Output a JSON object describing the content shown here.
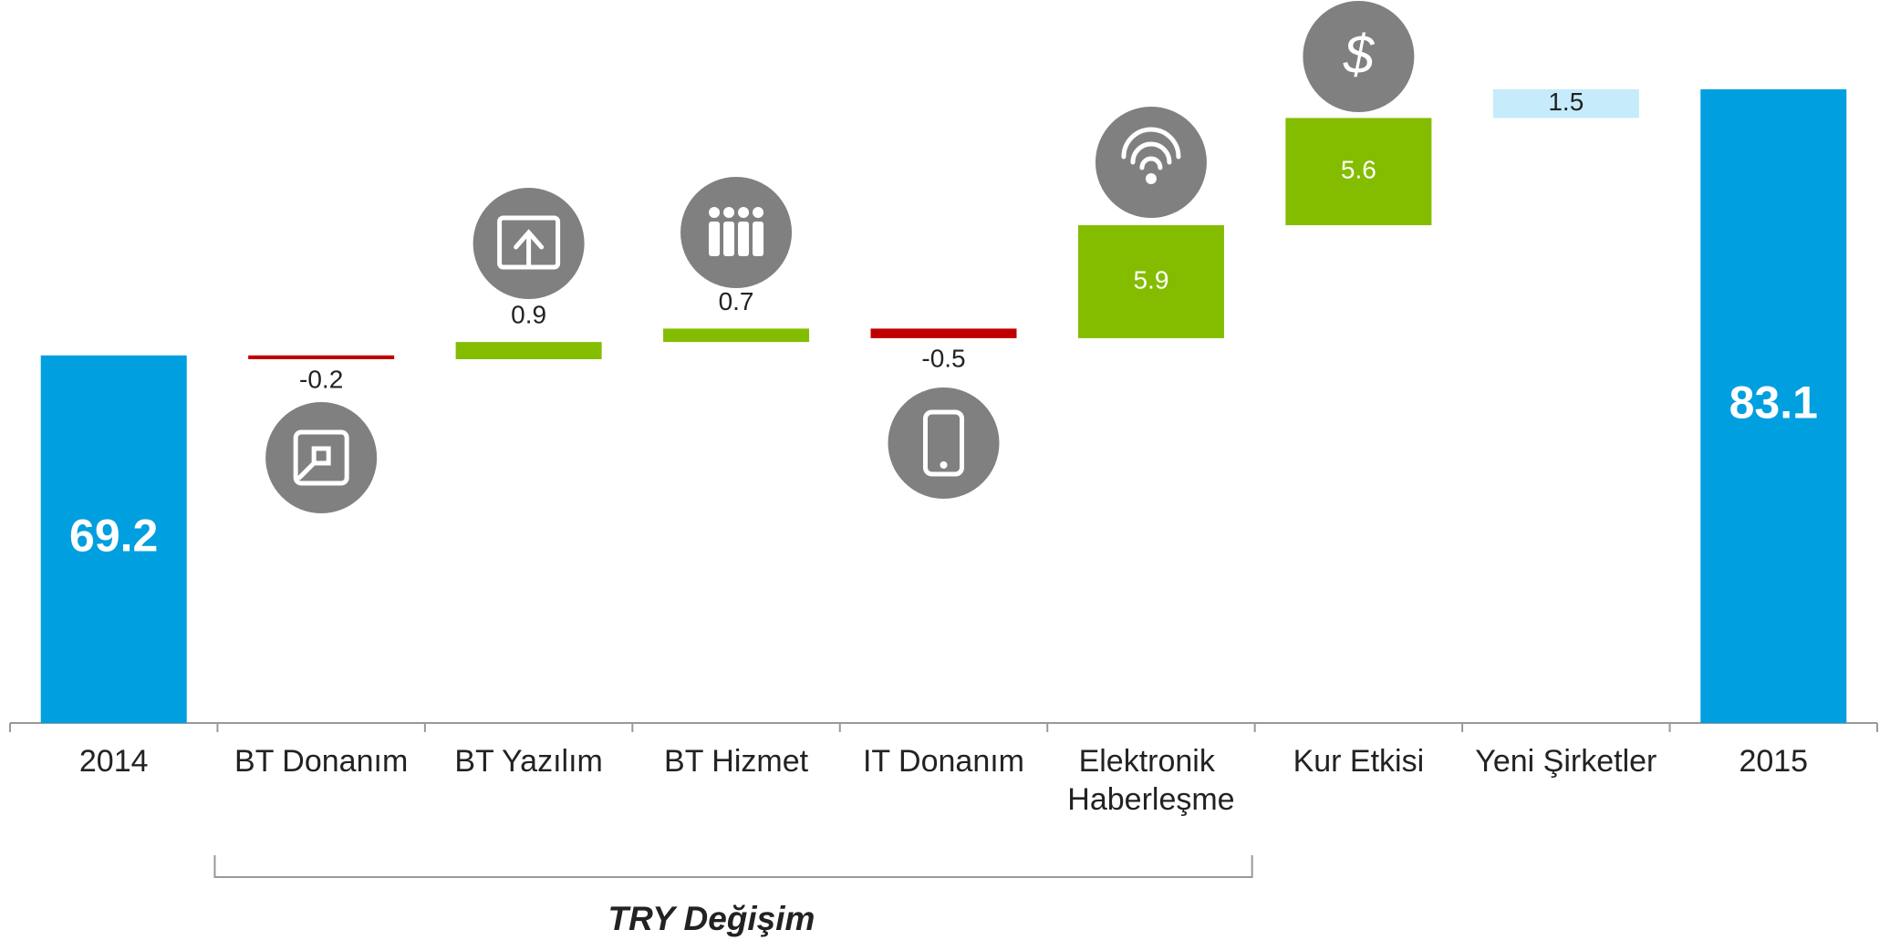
{
  "chart_data": {
    "type": "waterfall",
    "categories": [
      "2014",
      "BT Donanım",
      "BT Yazılım",
      "BT Hizmet",
      "IT Donanım",
      "Elektronik Haberleşme",
      "Kur Etkisi",
      "Yeni Şirketler",
      "2015"
    ],
    "values": [
      69.2,
      -0.2,
      0.9,
      0.7,
      -0.5,
      5.9,
      5.6,
      1.5,
      83.1
    ],
    "totals": [
      true,
      false,
      false,
      false,
      false,
      false,
      false,
      false,
      true
    ],
    "colors": [
      "#009fdf",
      "#c00000",
      "#84bd00",
      "#84bd00",
      "#c00000",
      "#84bd00",
      "#84bd00",
      "#c6ebfa",
      "#009fdf"
    ],
    "ylim": [
      50,
      85
    ],
    "bracket": {
      "label": "TRY Değişim",
      "from": 1,
      "to": 5
    }
  }
}
